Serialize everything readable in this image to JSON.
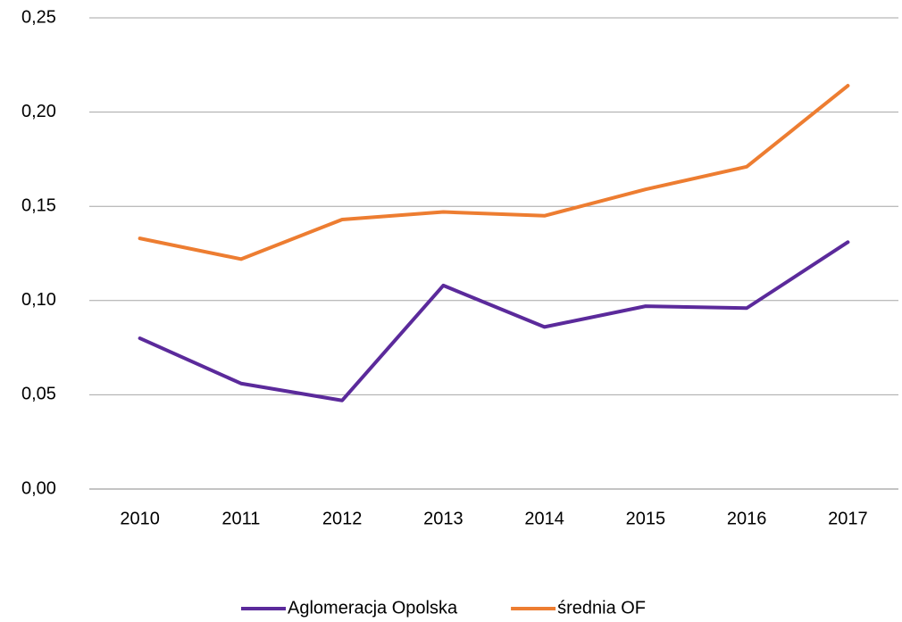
{
  "chart_data": {
    "type": "line",
    "categories": [
      "2010",
      "2011",
      "2012",
      "2013",
      "2014",
      "2015",
      "2016",
      "2017"
    ],
    "series": [
      {
        "name": "Aglomeracja Opolska",
        "color": "#5b2a9b",
        "values": [
          0.08,
          0.056,
          0.047,
          0.108,
          0.086,
          0.097,
          0.096,
          0.131
        ]
      },
      {
        "name": "średnia OF",
        "color": "#ed7d31",
        "values": [
          0.133,
          0.122,
          0.143,
          0.147,
          0.145,
          0.159,
          0.171,
          0.214
        ]
      }
    ],
    "ylim": [
      0,
      0.25
    ],
    "yticks": [
      {
        "value": 0,
        "label": "0,00"
      },
      {
        "value": 0.05,
        "label": "0,05"
      },
      {
        "value": 0.1,
        "label": "0,10"
      },
      {
        "value": 0.15,
        "label": "0,15"
      },
      {
        "value": 0.2,
        "label": "0,20"
      },
      {
        "value": 0.25,
        "label": "0,25"
      }
    ],
    "grid": true,
    "legend": "bottom"
  }
}
